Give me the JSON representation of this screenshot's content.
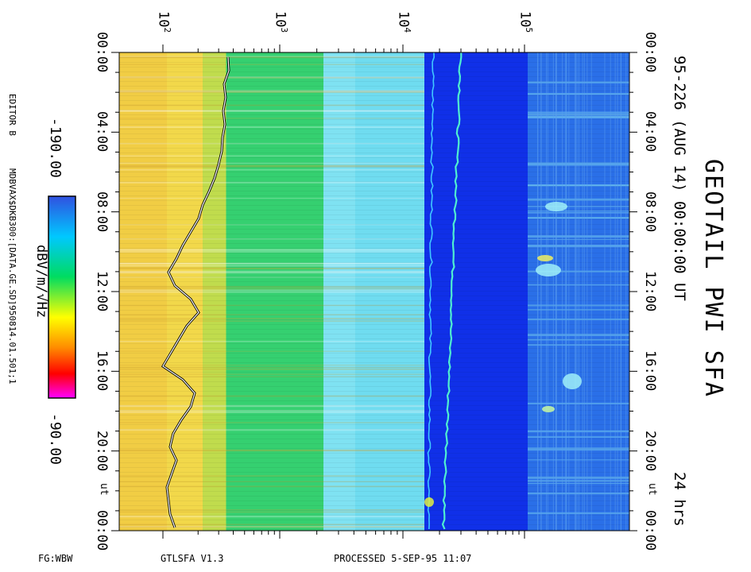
{
  "title": "GEOTAIL PWI SFA",
  "subtitle": "95-226 (AUG 14) 00:00:00 UT",
  "duration": "24 hrs",
  "editor": "EDITOR B",
  "dataset_path": "MDBVAX$DKB300:[DATA.GE.SD]950814.01.501;1",
  "footer": {
    "left": "FG:WBW",
    "program": "GTLSFA   V1.3",
    "processed": "PROCESSED   5-SEP-95   11:07"
  },
  "colorbar": {
    "label": "dBV/m/√Hz",
    "min_label": "-190.00",
    "max_label": "-90.00",
    "stops": [
      "#3050e0",
      "#00c8ff",
      "#00dc60",
      "#ffff00",
      "#ff8c00",
      "#ff0000",
      "#ff00ff"
    ]
  },
  "chart_data": {
    "type": "heatmap",
    "title": "GEOTAIL PWI SFA",
    "x_axis": {
      "scale": "log",
      "ticks": [
        100,
        1000,
        10000,
        100000
      ],
      "tick_labels": [
        "10",
        "10",
        "10",
        "10"
      ],
      "tick_exponents": [
        "2",
        "3",
        "4",
        "5"
      ]
    },
    "y_axis": {
      "range_hours": [
        0,
        24
      ],
      "ticks": [
        "00:00",
        "04:00",
        "08:00",
        "12:00",
        "16:00",
        "20:00",
        "00:00"
      ],
      "unit_label": "UT"
    },
    "value_range_dB": [
      -190,
      -90
    ],
    "spectral_bands": [
      {
        "from": "start",
        "to": "band-1-edge",
        "level": "high",
        "color": "#f2d84a"
      },
      {
        "from": "band-1-edge",
        "to": "band-2-edge",
        "level": "medium",
        "color": "#35d070"
      },
      {
        "from": "band-2-edge",
        "to": "band-3-edge",
        "level": "low",
        "color": "#6fdcf0"
      },
      {
        "from": "band-3-edge",
        "to": "band-4-edge",
        "level": "background",
        "color": "#1030e8"
      },
      {
        "from": "band-4-edge",
        "to": "end",
        "level": "background",
        "color": "#2a6fe8"
      }
    ],
    "overlay_line_color": "#ffffff"
  }
}
